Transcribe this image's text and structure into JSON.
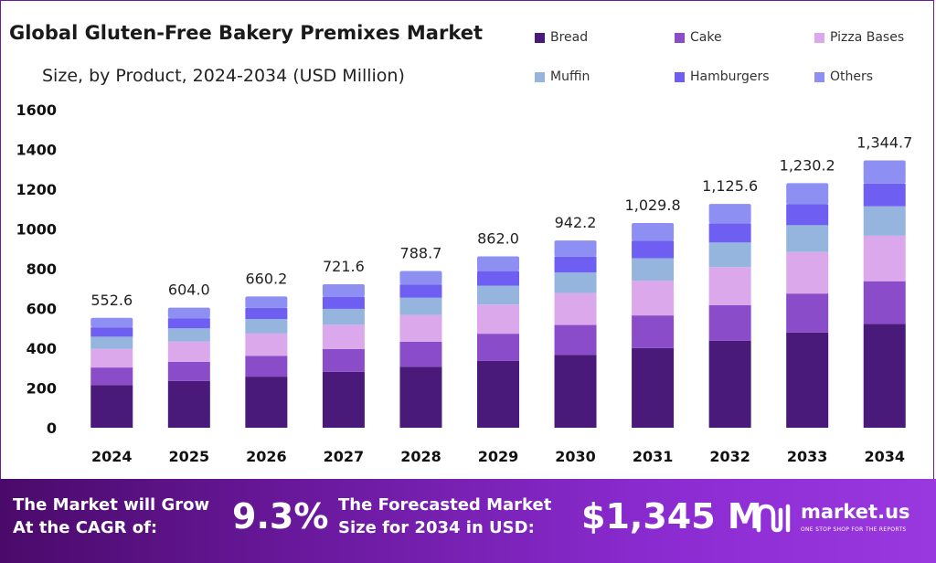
{
  "header": {
    "title": "Global Gluten-Free Bakery Premixes Market",
    "subtitle": "Size, by Product, 2024-2034 (USD Million)"
  },
  "chart_data": {
    "type": "bar",
    "stacked": true,
    "categories": [
      "2024",
      "2025",
      "2026",
      "2027",
      "2028",
      "2029",
      "2030",
      "2031",
      "2032",
      "2033",
      "2034"
    ],
    "totals": [
      552.6,
      604.0,
      660.2,
      721.6,
      788.7,
      862.0,
      942.2,
      1029.8,
      1125.6,
      1230.2,
      1344.7
    ],
    "total_labels": [
      "552.6",
      "604.0",
      "660.2",
      "721.6",
      "788.7",
      "862.0",
      "942.2",
      "1,029.8",
      "1,125.6",
      "1,230.2",
      "1,344.7"
    ],
    "series": [
      {
        "name": "Bread",
        "color": "#4a1a7a",
        "values": [
          215,
          235,
          257,
          281,
          307,
          336,
          367,
          401,
          438,
          479,
          523
        ]
      },
      {
        "name": "Cake",
        "color": "#8a4cc8",
        "values": [
          88,
          96,
          105,
          115,
          126,
          137,
          150,
          164,
          179,
          196,
          214
        ]
      },
      {
        "name": "Pizza Bases",
        "color": "#dca8ec",
        "values": [
          94,
          103,
          112,
          123,
          134,
          147,
          160,
          175,
          191,
          209,
          229
        ]
      },
      {
        "name": "Muffin",
        "color": "#95b4de",
        "values": [
          61,
          66,
          73,
          79,
          87,
          95,
          104,
          113,
          124,
          135,
          148
        ]
      },
      {
        "name": "Hamburgers",
        "color": "#6e5ef2",
        "values": [
          47,
          51,
          56,
          61,
          67,
          73,
          80,
          88,
          96,
          105,
          114
        ]
      },
      {
        "name": "Others",
        "color": "#8e8ff2",
        "values": [
          47.6,
          53.0,
          57.2,
          62.6,
          67.7,
          74.0,
          81.2,
          88.8,
          97.6,
          106.2,
          116.7
        ]
      }
    ],
    "y_ticks": [
      "0",
      "200",
      "400",
      "600",
      "800",
      "1000",
      "1200",
      "1400",
      "1600"
    ],
    "ylim": [
      0,
      1600
    ],
    "grid": false,
    "legend_position": "top-right"
  },
  "banner": {
    "cagr_text_line1": "The Market will Grow",
    "cagr_text_line2": "At the CAGR of:",
    "cagr_value": "9.3%",
    "forecast_text_line1": "The Forecasted Market",
    "forecast_text_line2": "Size for 2034 in USD:",
    "forecast_value": "$1,345 M"
  },
  "logo": {
    "name": "market.us",
    "tagline": "ONE STOP SHOP FOR THE REPORTS"
  }
}
